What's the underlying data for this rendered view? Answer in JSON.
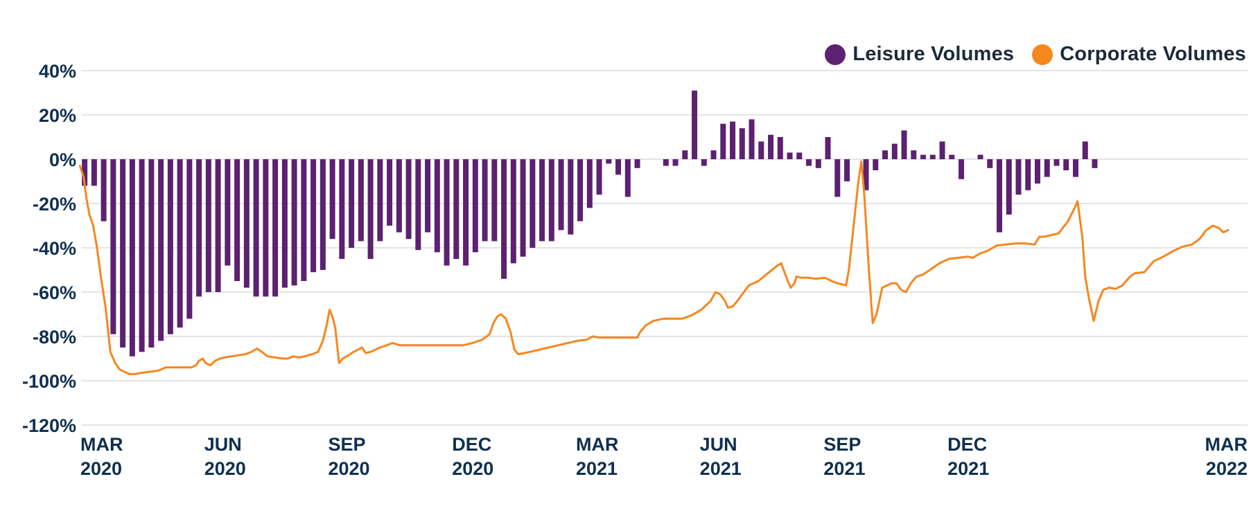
{
  "colors": {
    "leisure": "#5c2170",
    "corporate": "#f7861f",
    "grid": "#dcdcdc",
    "text": "#0f2f4f"
  },
  "legend": {
    "leisure_label": "Leisure Volumes",
    "corporate_label": "Corporate Volumes"
  },
  "chart_data": {
    "type": "bar+line",
    "title": "",
    "xlabel": "",
    "ylabel": "",
    "ylim": [
      -120,
      40
    ],
    "yticks": [
      "40%",
      "20%",
      "0%",
      "-20%",
      "-40%",
      "-60%",
      "-80%",
      "-100%",
      "-120%"
    ],
    "ytick_values": [
      40,
      20,
      0,
      -20,
      -40,
      -60,
      -80,
      -100,
      -120
    ],
    "xtick_labels": [
      [
        "MAR",
        "2020"
      ],
      [
        "JUN",
        "2020"
      ],
      [
        "SEP",
        "2020"
      ],
      [
        "DEC",
        "2020"
      ],
      [
        "MAR",
        "2021"
      ],
      [
        "JUN",
        "2021"
      ],
      [
        "SEP",
        "2021"
      ],
      [
        "DEC",
        "2021"
      ],
      [
        "MAR",
        "2022"
      ]
    ],
    "xtick_positions_weeks": [
      0,
      13,
      26,
      39,
      52,
      65,
      78,
      91,
      104
    ],
    "grid": true,
    "legend_position": "top-right",
    "series": [
      {
        "name": "Leisure Volumes",
        "kind": "bar",
        "unit": "week index from Mar 2020",
        "points": [
          [
            0.3,
            -12
          ],
          [
            1.3,
            -12
          ],
          [
            2.3,
            -28
          ],
          [
            3.3,
            -79
          ],
          [
            4.3,
            -85
          ],
          [
            5.3,
            -89
          ],
          [
            6.3,
            -87
          ],
          [
            7.3,
            -85
          ],
          [
            8.3,
            -82
          ],
          [
            9.3,
            -79
          ],
          [
            10.3,
            -76
          ],
          [
            11.3,
            -72
          ],
          [
            12.3,
            -62
          ],
          [
            13.3,
            -60
          ],
          [
            14.3,
            -60
          ],
          [
            15.3,
            -48
          ],
          [
            16.3,
            -55
          ],
          [
            17.3,
            -58
          ],
          [
            18.3,
            -62
          ],
          [
            19.3,
            -62
          ],
          [
            20.3,
            -62
          ],
          [
            21.3,
            -58
          ],
          [
            22.3,
            -57
          ],
          [
            23.3,
            -55
          ],
          [
            24.3,
            -51
          ],
          [
            25.3,
            -50
          ],
          [
            26.3,
            -36
          ],
          [
            27.3,
            -45
          ],
          [
            28.3,
            -40
          ],
          [
            29.3,
            -37
          ],
          [
            30.3,
            -45
          ],
          [
            31.3,
            -37
          ],
          [
            32.3,
            -30
          ],
          [
            33.3,
            -33
          ],
          [
            34.3,
            -36
          ],
          [
            35.3,
            -41
          ],
          [
            36.3,
            -33
          ],
          [
            37.3,
            -42
          ],
          [
            38.3,
            -48
          ],
          [
            39.3,
            -45
          ],
          [
            40.3,
            -48
          ],
          [
            41.3,
            -42
          ],
          [
            42.3,
            -37
          ],
          [
            43.3,
            -37
          ],
          [
            44.3,
            -54
          ],
          [
            45.3,
            -47
          ],
          [
            46.3,
            -44
          ],
          [
            47.3,
            -40
          ],
          [
            48.3,
            -37
          ],
          [
            49.3,
            -37
          ],
          [
            50.3,
            -32
          ],
          [
            51.3,
            -34
          ],
          [
            52.3,
            -28
          ],
          [
            53.3,
            -22
          ],
          [
            54.3,
            -16
          ],
          [
            55.3,
            -2
          ],
          [
            56.3,
            -7
          ],
          [
            57.3,
            -17
          ],
          [
            58.3,
            -4
          ],
          [
            61.3,
            -3
          ],
          [
            62.3,
            -3
          ],
          [
            63.3,
            4
          ],
          [
            64.3,
            31
          ],
          [
            65.3,
            -3
          ],
          [
            66.3,
            4
          ],
          [
            67.3,
            16
          ],
          [
            68.3,
            17
          ],
          [
            69.3,
            14
          ],
          [
            70.3,
            18
          ],
          [
            71.3,
            8
          ],
          [
            72.3,
            11
          ],
          [
            73.3,
            10
          ],
          [
            74.3,
            3
          ],
          [
            75.3,
            3
          ],
          [
            76.3,
            -3
          ],
          [
            77.3,
            -4
          ],
          [
            78.3,
            10
          ],
          [
            79.3,
            -17
          ],
          [
            80.3,
            -10
          ],
          [
            82.3,
            -14
          ],
          [
            83.3,
            -5
          ],
          [
            84.3,
            4
          ],
          [
            85.3,
            7
          ],
          [
            86.3,
            13
          ],
          [
            87.3,
            4
          ],
          [
            88.3,
            2
          ],
          [
            89.3,
            2
          ],
          [
            90.3,
            8
          ],
          [
            91.3,
            2
          ],
          [
            92.3,
            -9
          ],
          [
            94.3,
            2
          ],
          [
            95.3,
            -4
          ],
          [
            96.3,
            -33
          ],
          [
            97.3,
            -25
          ],
          [
            98.3,
            -16
          ],
          [
            99.3,
            -14
          ],
          [
            100.3,
            -11
          ],
          [
            101.3,
            -8
          ],
          [
            102.3,
            -3
          ],
          [
            103.3,
            -5
          ],
          [
            104.3,
            -8
          ],
          [
            105.3,
            8
          ],
          [
            106.3,
            -4
          ]
        ]
      },
      {
        "name": "Corporate Volumes",
        "kind": "line",
        "unit": "week index from Mar 2020",
        "points": [
          [
            -0.2,
            -3
          ],
          [
            0.2,
            -8
          ],
          [
            0.5,
            -18
          ],
          [
            0.8,
            -25
          ],
          [
            1.2,
            -30
          ],
          [
            1.6,
            -40
          ],
          [
            2.0,
            -53
          ],
          [
            2.5,
            -67
          ],
          [
            3.0,
            -87
          ],
          [
            3.5,
            -92
          ],
          [
            4.0,
            -95
          ],
          [
            4.5,
            -96
          ],
          [
            5.0,
            -97
          ],
          [
            5.6,
            -97
          ],
          [
            6.2,
            -96.5
          ],
          [
            7.0,
            -96
          ],
          [
            8.0,
            -95.5
          ],
          [
            8.8,
            -94
          ],
          [
            9.5,
            -94
          ],
          [
            10.5,
            -94
          ],
          [
            11.5,
            -94
          ],
          [
            12.0,
            -93
          ],
          [
            12.3,
            -91
          ],
          [
            12.7,
            -90
          ],
          [
            13.0,
            -92
          ],
          [
            13.5,
            -93
          ],
          [
            14.0,
            -91
          ],
          [
            14.5,
            -90
          ],
          [
            15.0,
            -89.5
          ],
          [
            15.7,
            -89
          ],
          [
            16.5,
            -88.5
          ],
          [
            17.2,
            -88
          ],
          [
            17.8,
            -87
          ],
          [
            18.4,
            -85.5
          ],
          [
            18.9,
            -87
          ],
          [
            19.5,
            -89
          ],
          [
            20.3,
            -89.5
          ],
          [
            21.0,
            -90
          ],
          [
            21.6,
            -90
          ],
          [
            22.2,
            -89
          ],
          [
            22.8,
            -89.5
          ],
          [
            23.4,
            -89
          ],
          [
            24.2,
            -88
          ],
          [
            24.8,
            -87
          ],
          [
            25.3,
            -82
          ],
          [
            25.7,
            -75
          ],
          [
            26.0,
            -68
          ],
          [
            26.3,
            -71
          ],
          [
            26.6,
            -76
          ],
          [
            27.0,
            -92
          ],
          [
            27.4,
            -90
          ],
          [
            28.0,
            -88.5
          ],
          [
            28.5,
            -87
          ],
          [
            29.0,
            -86
          ],
          [
            29.4,
            -85
          ],
          [
            29.8,
            -87.5
          ],
          [
            30.3,
            -87
          ],
          [
            30.8,
            -86
          ],
          [
            31.3,
            -85
          ],
          [
            32.0,
            -84
          ],
          [
            32.6,
            -83
          ],
          [
            33.4,
            -84
          ],
          [
            34.5,
            -84
          ],
          [
            36,
            -84
          ],
          [
            38,
            -84
          ],
          [
            40,
            -84
          ],
          [
            41,
            -83
          ],
          [
            42,
            -81.5
          ],
          [
            42.8,
            -79
          ],
          [
            43.2,
            -74
          ],
          [
            43.6,
            -71
          ],
          [
            44.0,
            -70
          ],
          [
            44.5,
            -72
          ],
          [
            45.0,
            -78
          ],
          [
            45.4,
            -86
          ],
          [
            45.8,
            -88
          ],
          [
            46.5,
            -87.5
          ],
          [
            47.5,
            -86.5
          ],
          [
            49,
            -85
          ],
          [
            50.5,
            -83.5
          ],
          [
            52,
            -82
          ],
          [
            53,
            -81.5
          ],
          [
            53.6,
            -80
          ],
          [
            54.3,
            -80.5
          ],
          [
            55,
            -80.5
          ],
          [
            57,
            -80.5
          ],
          [
            58.3,
            -80.5
          ],
          [
            58.6,
            -78
          ],
          [
            59.2,
            -75
          ],
          [
            60.0,
            -73
          ],
          [
            61,
            -72
          ],
          [
            62,
            -72
          ],
          [
            63,
            -72
          ],
          [
            64,
            -70.5
          ],
          [
            65,
            -68
          ],
          [
            66,
            -64
          ],
          [
            66.5,
            -60
          ],
          [
            67.0,
            -61
          ],
          [
            67.5,
            -64
          ],
          [
            67.8,
            -67
          ],
          [
            68.3,
            -66.5
          ],
          [
            68.8,
            -64
          ],
          [
            69.3,
            -61
          ],
          [
            70,
            -57
          ],
          [
            71,
            -55
          ],
          [
            72,
            -51.5
          ],
          [
            73,
            -48
          ],
          [
            73.4,
            -47
          ],
          [
            74,
            -54
          ],
          [
            74.4,
            -58
          ],
          [
            74.8,
            -56
          ],
          [
            75,
            -53
          ],
          [
            75.5,
            -53.5
          ],
          [
            76.3,
            -53.5
          ],
          [
            77,
            -54
          ],
          [
            78,
            -53.5
          ],
          [
            78.7,
            -55
          ],
          [
            79.3,
            -56
          ],
          [
            79.8,
            -56.5
          ],
          [
            80.2,
            -57
          ],
          [
            80.5,
            -50
          ],
          [
            81.0,
            -30
          ],
          [
            81.5,
            -10
          ],
          [
            81.8,
            -1
          ],
          [
            82.1,
            -15
          ],
          [
            82.6,
            -50
          ],
          [
            83.0,
            -74
          ],
          [
            83.4,
            -70
          ],
          [
            84.0,
            -58
          ],
          [
            84.5,
            -57
          ],
          [
            85.0,
            -56
          ],
          [
            85.5,
            -56
          ],
          [
            86.0,
            -59
          ],
          [
            86.5,
            -60
          ],
          [
            87.0,
            -56
          ],
          [
            87.6,
            -53
          ],
          [
            88.3,
            -52
          ],
          [
            89.0,
            -50
          ],
          [
            90,
            -47
          ],
          [
            91,
            -45
          ],
          [
            92,
            -44.5
          ],
          [
            93,
            -44
          ],
          [
            93.5,
            -44.5
          ],
          [
            94.3,
            -42.5
          ],
          [
            95,
            -41.5
          ],
          [
            96,
            -39
          ],
          [
            97,
            -38.5
          ],
          [
            98,
            -38
          ],
          [
            99,
            -38
          ],
          [
            100,
            -38.5
          ],
          [
            100.5,
            -35
          ],
          [
            101,
            -35
          ],
          [
            102.5,
            -33.5
          ],
          [
            103.5,
            -28
          ],
          [
            104.2,
            -22
          ],
          [
            104.5,
            -19
          ],
          [
            105.0,
            -35
          ],
          [
            105.3,
            -53
          ],
          [
            105.7,
            -63
          ],
          [
            106.2,
            -73
          ],
          [
            106.7,
            -64
          ],
          [
            107.2,
            -59
          ],
          [
            107.8,
            -58
          ],
          [
            108.5,
            -58.5
          ],
          [
            109.2,
            -57
          ],
          [
            109.6,
            -55
          ],
          [
            110.0,
            -53
          ],
          [
            110.5,
            -51.5
          ],
          [
            111.5,
            -51
          ],
          [
            112.5,
            -46
          ],
          [
            113.5,
            -44
          ],
          [
            114.5,
            -41.5
          ],
          [
            115.5,
            -39.5
          ],
          [
            116.5,
            -38.5
          ],
          [
            117.3,
            -36
          ],
          [
            118.0,
            -32
          ],
          [
            118.7,
            -30
          ],
          [
            119.3,
            -31
          ],
          [
            119.8,
            -33
          ],
          [
            120.3,
            -32
          ]
        ]
      }
    ]
  }
}
